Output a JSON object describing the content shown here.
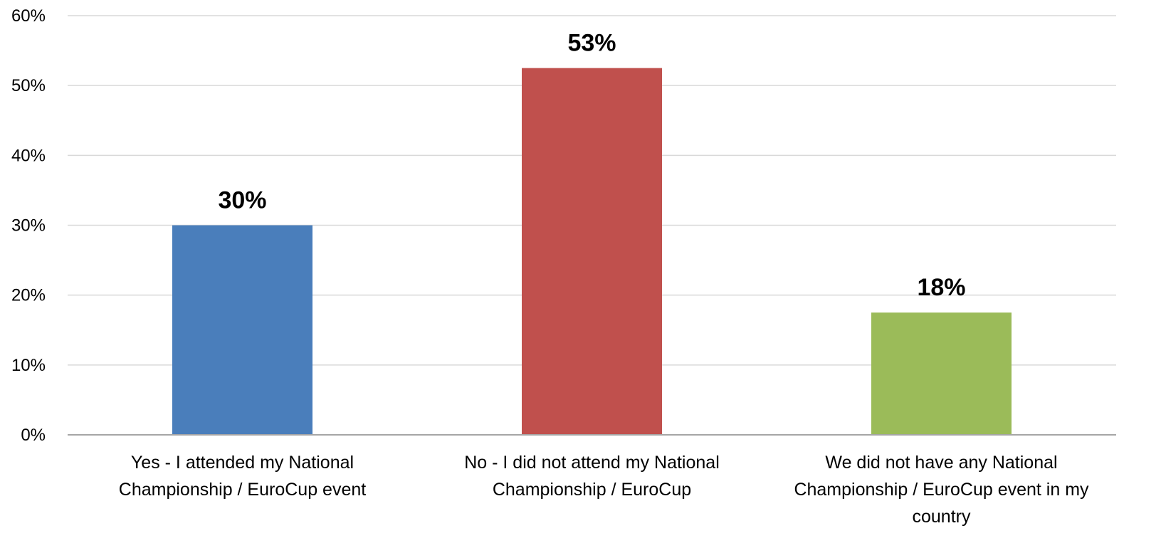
{
  "chart_data": {
    "type": "bar",
    "categories": [
      [
        "Yes - I attended my National",
        "Championship / EuroCup event"
      ],
      [
        "No - I did not attend my National",
        "Championship / EuroCup"
      ],
      [
        "We did not have any National",
        "Championship / EuroCup event in my",
        "country"
      ]
    ],
    "values": [
      30,
      52.5,
      17.5
    ],
    "data_labels": [
      "30%",
      "53%",
      "18%"
    ],
    "colors": [
      "#4A7EBB",
      "#C0504D",
      "#9BBB59"
    ],
    "ylim": [
      0,
      60
    ],
    "yticks": [
      0,
      10,
      20,
      30,
      40,
      50,
      60
    ],
    "ytick_labels": [
      "0%",
      "10%",
      "20%",
      "30%",
      "40%",
      "50%",
      "60%"
    ],
    "grid": true,
    "legend": "none",
    "title": "",
    "xlabel": "",
    "ylabel": ""
  }
}
